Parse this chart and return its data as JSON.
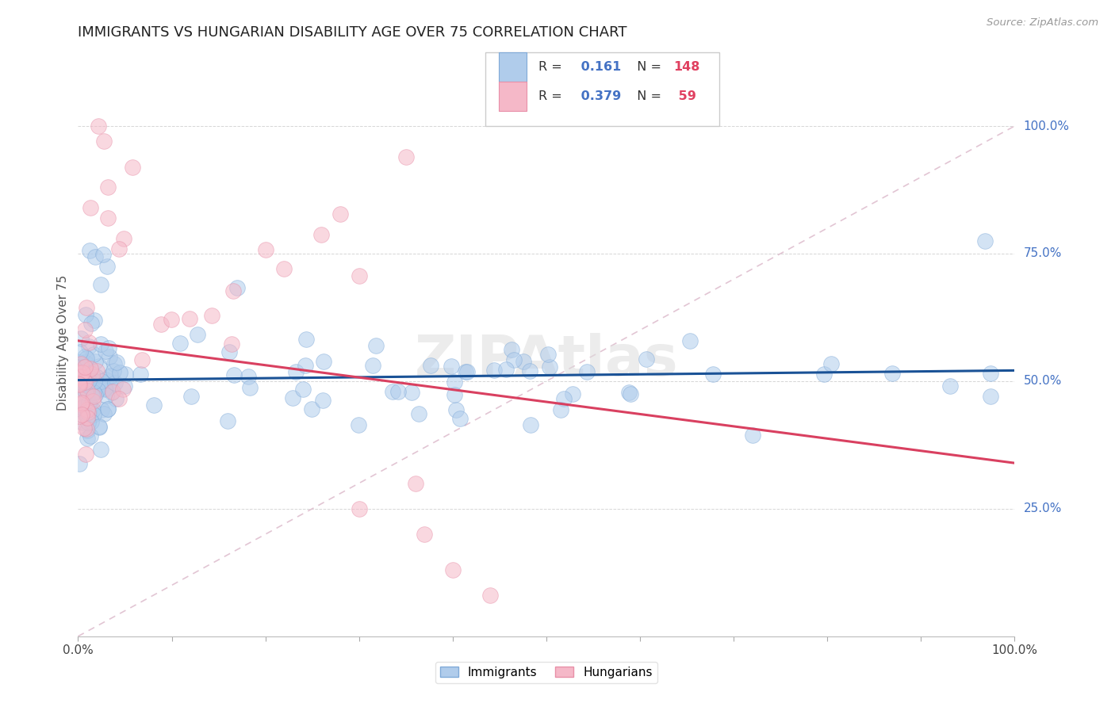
{
  "title": "IMMIGRANTS VS HUNGARIAN DISABILITY AGE OVER 75 CORRELATION CHART",
  "source": "Source: ZipAtlas.com",
  "ylabel": "Disability Age Over 75",
  "ylabel_ticks": [
    "25.0%",
    "50.0%",
    "75.0%",
    "100.0%"
  ],
  "ylabel_tick_vals": [
    0.25,
    0.5,
    0.75,
    1.0
  ],
  "R_imm": 0.161,
  "N_imm": 148,
  "R_hun": 0.379,
  "N_hun": 59,
  "blue_face": "#b0cceb",
  "blue_edge": "#80aad8",
  "pink_face": "#f5b8c8",
  "pink_edge": "#e890a8",
  "blue_line": "#1a5296",
  "pink_line": "#d94060",
  "diag_line": "#ddbbcc",
  "grid_color": "#cccccc",
  "background_color": "#ffffff",
  "title_color": "#222222",
  "label_color": "#4472c4",
  "source_color": "#999999",
  "xlim": [
    0.0,
    1.0
  ],
  "ylim": [
    0.0,
    1.15
  ]
}
